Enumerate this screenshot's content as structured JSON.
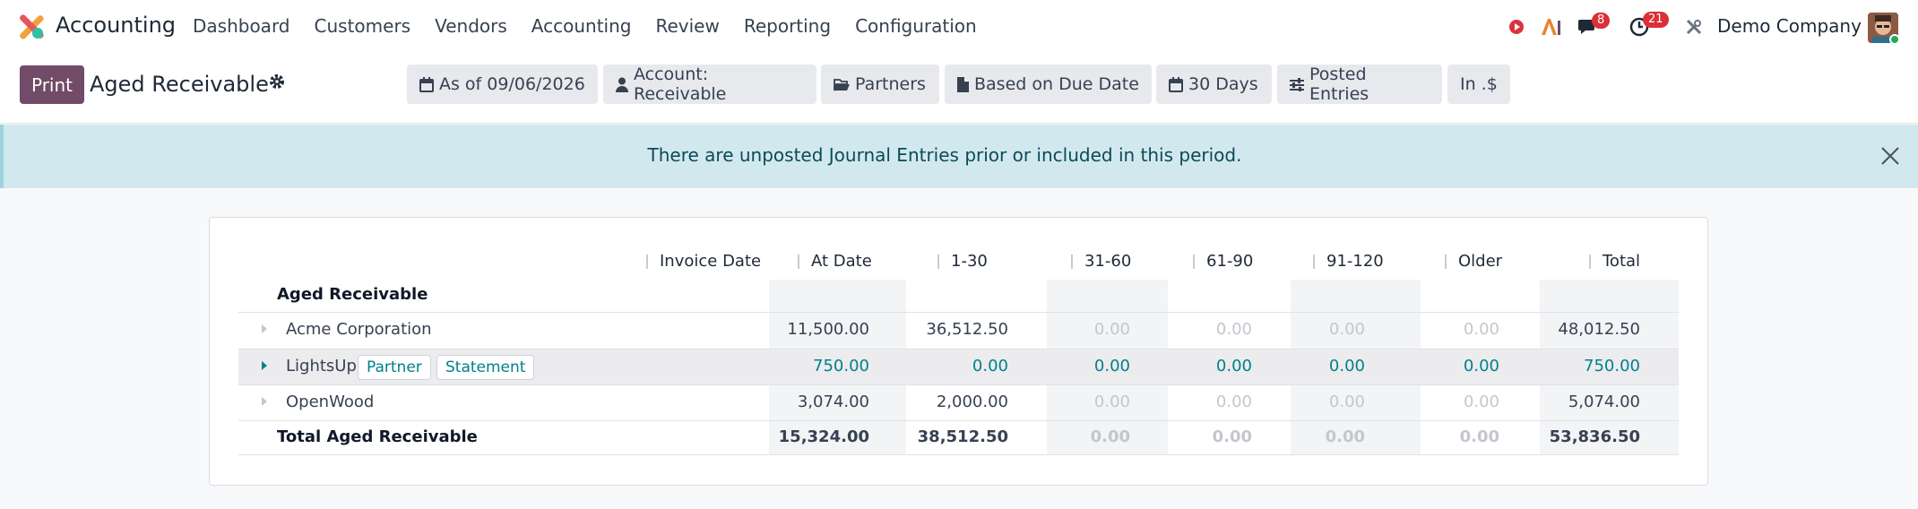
{
  "app": {
    "name": "Accounting"
  },
  "menu": [
    "Dashboard",
    "Customers",
    "Vendors",
    "Accounting",
    "Review",
    "Reporting",
    "Configuration"
  ],
  "systray": {
    "messages_count": "8",
    "activities_count": "21",
    "company": "Demo Company"
  },
  "control": {
    "print_label": "Print",
    "title": "Aged Receivable",
    "filters": {
      "date": "As of 09/06/2026",
      "account": "Account: Receivable",
      "partners": "Partners",
      "basis": "Based on Due Date",
      "period": "30 Days",
      "entries": "Posted Entries",
      "currency": "In .$"
    }
  },
  "alert": {
    "text": "There are unposted Journal Entries prior or included in this period."
  },
  "report": {
    "columns": [
      "Invoice Date",
      "At Date",
      "1-30",
      "31-60",
      "61-90",
      "91-120",
      "Older",
      "Total"
    ],
    "section_label": "Aged Receivable",
    "rows": [
      {
        "name": "Acme Corporation",
        "values": [
          "11,500.00",
          "36,512.50",
          "0.00",
          "0.00",
          "0.00",
          "0.00",
          "48,012.50"
        ]
      },
      {
        "name": "LightsUp",
        "values": [
          "750.00",
          "0.00",
          "0.00",
          "0.00",
          "0.00",
          "0.00",
          "750.00"
        ],
        "tags": [
          "Partner",
          "Statement"
        ]
      },
      {
        "name": "OpenWood",
        "values": [
          "3,074.00",
          "2,000.00",
          "0.00",
          "0.00",
          "0.00",
          "0.00",
          "5,074.00"
        ]
      }
    ],
    "total": {
      "name": "Total Aged Receivable",
      "values": [
        "15,324.00",
        "38,512.50",
        "0.00",
        "0.00",
        "0.00",
        "0.00",
        "53,836.50"
      ]
    }
  }
}
